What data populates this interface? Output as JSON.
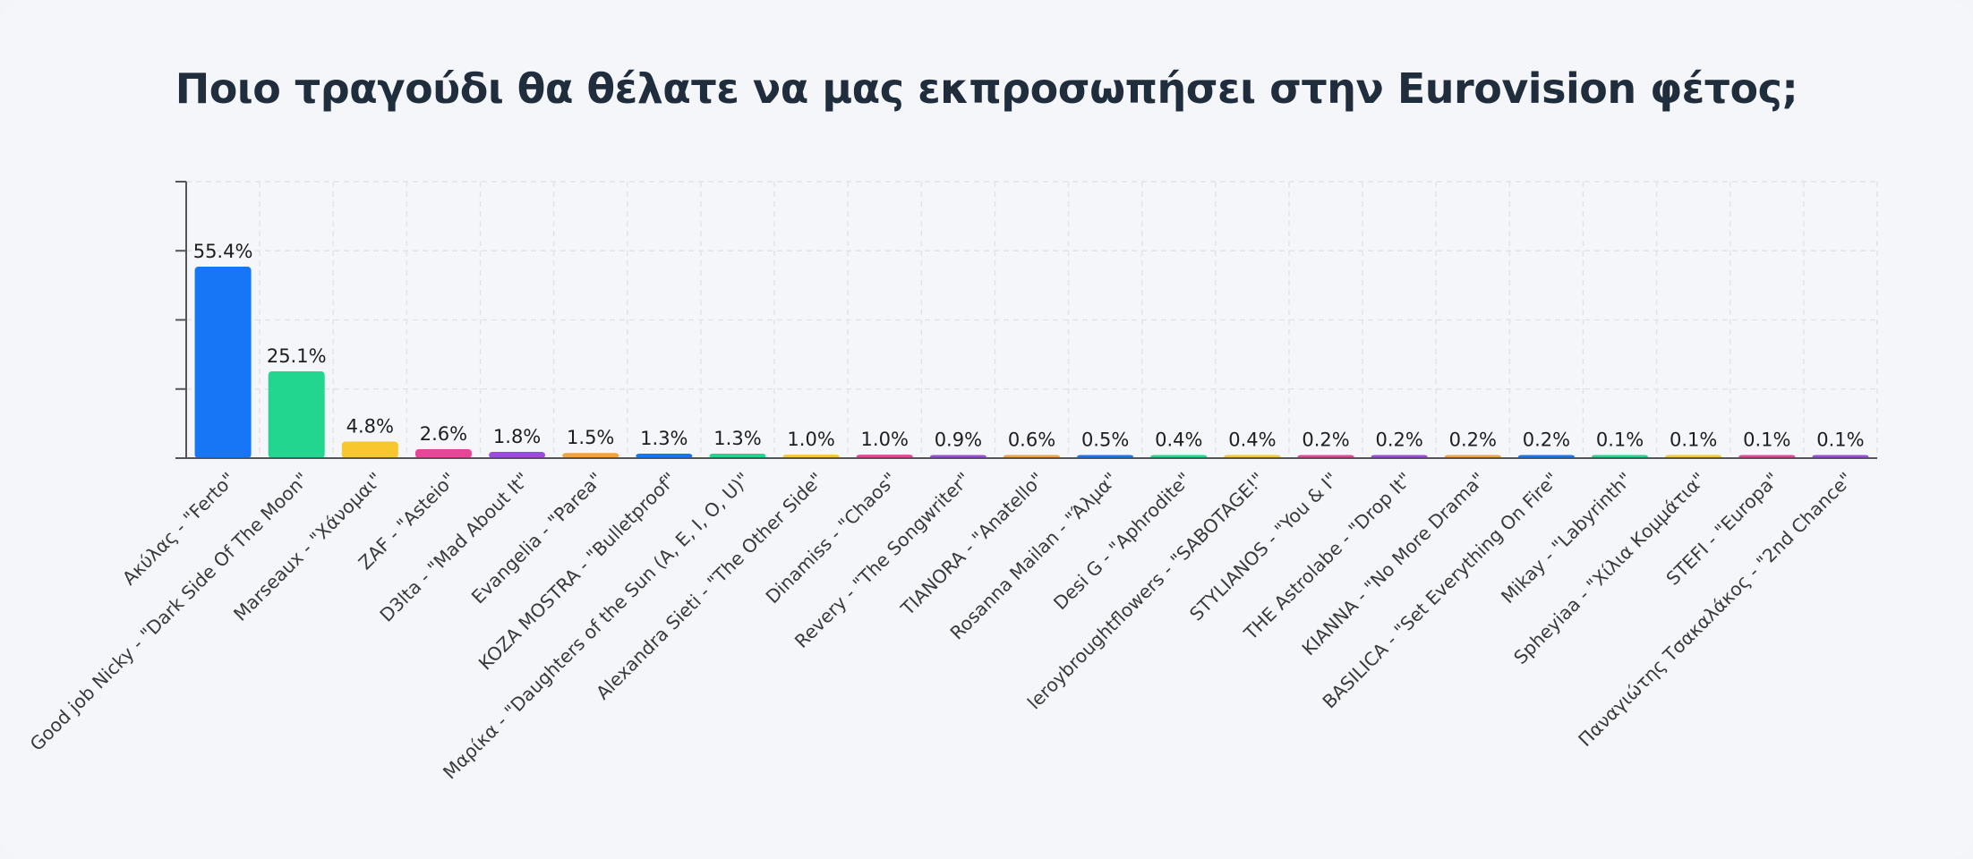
{
  "chart_data": {
    "type": "bar",
    "title": "Ποιο τραγούδι θα θέλατε να μας εκπροσωπήσει στην Eurovision φέτος;",
    "xlabel": "",
    "ylabel": "",
    "ylim": [
      0,
      80
    ],
    "grid": true,
    "categories": [
      "Ακύλας - \"Ferto\"",
      "Good job Nicky - \"Dark Side Of The Moon\"",
      "Marseaux - \"Χάνομαι\"",
      "ZAF - \"Asteio\"",
      "D3lta - \"Mad About It\"",
      "Evangelia - \"Parea\"",
      "KOZA MOSTRA - \"Bulletproof\"",
      "Μαρίκα - \"Daughters of the Sun (A, E, I, O, U)\"",
      "Alexandra Sieti - \"The Other Side\"",
      "Dinamiss - \"Chaos\"",
      "Revery - \"The Songwriter\"",
      "TIANORA - \"Anatello\"",
      "Rosanna Mailan - \"Άλμα\"",
      "Desi G - \"Aphrodite\"",
      "leroybroughtflowers - \"SABOTAGE!\"",
      "STYLIANOS - \"You & I\"",
      "THE Astrolabe - \"Drop It\"",
      "KIANNA - \"No More Drama\"",
      "BASILICA - \"Set Everything On Fire\"",
      "Mikay - \"Labyrinth\"",
      "Spheyiaa - \"Χίλια Κομμάτια\"",
      "STEFI - \"Europa\"",
      "Παναγιώτης Τσακαλάκος - \"2nd Chance\""
    ],
    "values": [
      55.4,
      25.1,
      4.8,
      2.6,
      1.8,
      1.5,
      1.3,
      1.3,
      1.0,
      1.0,
      0.9,
      0.6,
      0.5,
      0.4,
      0.4,
      0.2,
      0.2,
      0.2,
      0.2,
      0.1,
      0.1,
      0.1,
      0.1
    ],
    "data_labels": [
      "55.4%",
      "25.1%",
      "4.8%",
      "2.6%",
      "1.8%",
      "1.5%",
      "1.3%",
      "1.3%",
      "1.0%",
      "1.0%",
      "0.9%",
      "0.6%",
      "0.5%",
      "0.4%",
      "0.4%",
      "0.2%",
      "0.2%",
      "0.2%",
      "0.2%",
      "0.1%",
      "0.1%",
      "0.1%",
      "0.1%"
    ],
    "colors": [
      "#1776f6",
      "#22d690",
      "#f8c62d",
      "#e94498",
      "#9c4be0",
      "#f4a23c",
      "#1776f6",
      "#22d690",
      "#f8c62d",
      "#e94498",
      "#9c4be0",
      "#f4a23c",
      "#1776f6",
      "#22d690",
      "#f8c62d",
      "#e94498",
      "#9c4be0",
      "#f4a23c",
      "#1776f6",
      "#22d690",
      "#f8c62d",
      "#e94498",
      "#9c4be0"
    ]
  }
}
